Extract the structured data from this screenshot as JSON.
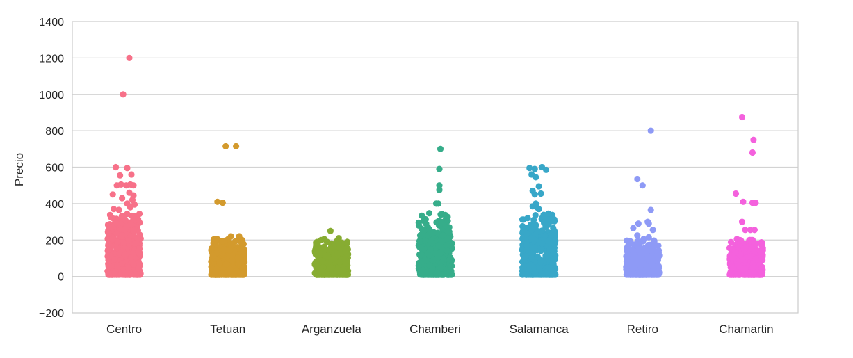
{
  "chart_data": {
    "type": "scatter",
    "subtype": "strip",
    "title": "",
    "xlabel": "",
    "ylabel": "Precio",
    "ylim": [
      -200,
      1400
    ],
    "yticks": [
      -200,
      0,
      200,
      400,
      600,
      800,
      1000,
      1200,
      1400
    ],
    "ytick_labels": [
      "−200",
      "0",
      "200",
      "400",
      "600",
      "800",
      "1000",
      "1200",
      "1400"
    ],
    "grid": true,
    "legend": "none",
    "categories": [
      "Centro",
      "Tetuan",
      "Arganzuela",
      "Chamberi",
      "Salamanca",
      "Retiro",
      "Chamartin"
    ],
    "series": [
      {
        "category": "Centro",
        "color": "#f77189",
        "points": [
          {
            "x": 0.05,
            "y": 1200
          },
          {
            "x": -0.01,
            "y": 1000
          },
          {
            "x": -0.08,
            "y": 600
          },
          {
            "x": 0.03,
            "y": 595
          },
          {
            "x": -0.04,
            "y": 555
          },
          {
            "x": 0.07,
            "y": 560
          },
          {
            "x": -0.07,
            "y": 500
          },
          {
            "x": -0.03,
            "y": 505
          },
          {
            "x": 0.02,
            "y": 500
          },
          {
            "x": 0.06,
            "y": 505
          },
          {
            "x": 0.09,
            "y": 500
          },
          {
            "x": -0.11,
            "y": 450
          },
          {
            "x": 0.05,
            "y": 460
          },
          {
            "x": 0.09,
            "y": 445
          },
          {
            "x": -0.02,
            "y": 430
          },
          {
            "x": 0.08,
            "y": 420
          },
          {
            "x": 0.03,
            "y": 400
          },
          {
            "x": 0.1,
            "y": 395
          },
          {
            "x": 0.06,
            "y": 380
          },
          {
            "x": -0.1,
            "y": 370
          },
          {
            "x": -0.05,
            "y": 365
          }
        ],
        "dense_max": 350,
        "dense_weight_top": 300
      },
      {
        "category": "Tetuan",
        "color": "#d39a2d",
        "points": [
          {
            "x": -0.02,
            "y": 715
          },
          {
            "x": 0.08,
            "y": 715
          },
          {
            "x": -0.1,
            "y": 410
          },
          {
            "x": -0.05,
            "y": 405
          },
          {
            "x": 0.03,
            "y": 220
          },
          {
            "x": 0.11,
            "y": 220
          },
          {
            "x": -0.11,
            "y": 205
          }
        ],
        "dense_max": 210,
        "dense_weight_top": 150
      },
      {
        "category": "Arganzuela",
        "color": "#87ac32",
        "points": [
          {
            "x": -0.01,
            "y": 250
          },
          {
            "x": -0.07,
            "y": 205
          },
          {
            "x": 0.07,
            "y": 210
          }
        ],
        "dense_max": 200,
        "dense_weight_top": 150
      },
      {
        "category": "Chamberi",
        "color": "#36ad8a",
        "points": [
          {
            "x": 0.05,
            "y": 700
          },
          {
            "x": 0.04,
            "y": 590
          },
          {
            "x": 0.04,
            "y": 500
          },
          {
            "x": 0.04,
            "y": 475
          },
          {
            "x": 0.03,
            "y": 400
          },
          {
            "x": 0.01,
            "y": 400
          },
          {
            "x": -0.11,
            "y": 305
          },
          {
            "x": 0.06,
            "y": 300
          }
        ],
        "dense_max": 350,
        "dense_weight_top": 250
      },
      {
        "category": "Salamanca",
        "color": "#38a7c8",
        "points": [
          {
            "x": -0.09,
            "y": 595
          },
          {
            "x": -0.04,
            "y": 590
          },
          {
            "x": 0.03,
            "y": 600
          },
          {
            "x": 0.07,
            "y": 585
          },
          {
            "x": -0.07,
            "y": 560
          },
          {
            "x": -0.03,
            "y": 545
          },
          {
            "x": 0.0,
            "y": 495
          },
          {
            "x": -0.06,
            "y": 470
          },
          {
            "x": -0.04,
            "y": 450
          },
          {
            "x": 0.02,
            "y": 455
          },
          {
            "x": -0.03,
            "y": 400
          },
          {
            "x": -0.06,
            "y": 385
          },
          {
            "x": -0.02,
            "y": 380
          },
          {
            "x": 0.0,
            "y": 370
          },
          {
            "x": 0.09,
            "y": 345
          },
          {
            "x": -0.05,
            "y": 310
          },
          {
            "x": 0.05,
            "y": 300
          }
        ],
        "dense_max": 350,
        "dense_weight_top": 250
      },
      {
        "category": "Retiro",
        "color": "#8e9af6",
        "points": [
          {
            "x": 0.08,
            "y": 800
          },
          {
            "x": -0.05,
            "y": 535
          },
          {
            "x": 0.0,
            "y": 500
          },
          {
            "x": 0.08,
            "y": 365
          },
          {
            "x": 0.05,
            "y": 300
          },
          {
            "x": -0.04,
            "y": 290
          },
          {
            "x": 0.06,
            "y": 290
          },
          {
            "x": -0.09,
            "y": 265
          },
          {
            "x": 0.1,
            "y": 255
          },
          {
            "x": 0.06,
            "y": 215
          },
          {
            "x": 0.01,
            "y": 205
          },
          {
            "x": -0.05,
            "y": 225
          }
        ],
        "dense_max": 200,
        "dense_weight_top": 150
      },
      {
        "category": "Chamartin",
        "color": "#f461dd",
        "points": [
          {
            "x": -0.04,
            "y": 875
          },
          {
            "x": 0.07,
            "y": 750
          },
          {
            "x": 0.06,
            "y": 680
          },
          {
            "x": -0.1,
            "y": 455
          },
          {
            "x": -0.03,
            "y": 410
          },
          {
            "x": 0.06,
            "y": 405
          },
          {
            "x": 0.09,
            "y": 405
          },
          {
            "x": -0.04,
            "y": 300
          },
          {
            "x": -0.01,
            "y": 255
          },
          {
            "x": 0.04,
            "y": 255
          },
          {
            "x": 0.08,
            "y": 255
          },
          {
            "x": -0.09,
            "y": 205
          },
          {
            "x": -0.06,
            "y": 200
          },
          {
            "x": 0.05,
            "y": 200
          }
        ],
        "dense_max": 200,
        "dense_weight_top": 150
      }
    ]
  }
}
